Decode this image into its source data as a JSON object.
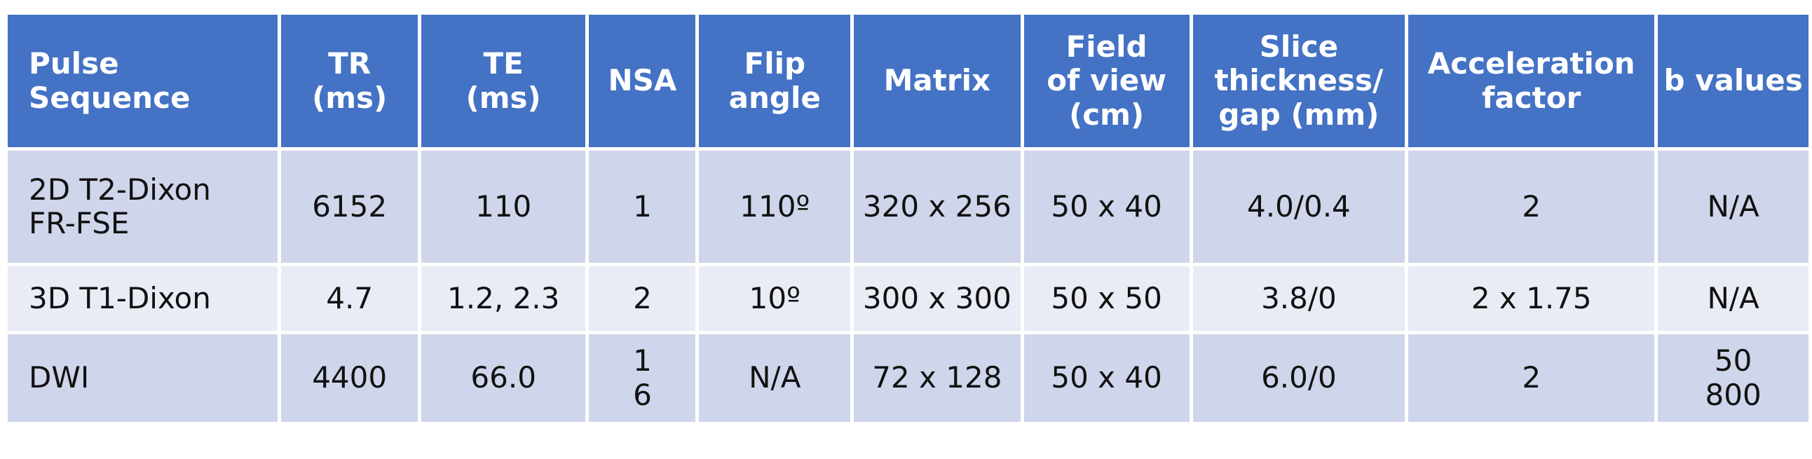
{
  "table": {
    "header": [
      "Pulse\nSequence",
      "TR\n(ms)",
      "TE\n(ms)",
      "NSA",
      "Flip\nangle",
      "Matrix",
      "Field\nof view\n(cm)",
      "Slice\nthickness/\ngap (mm)",
      "Acceleration\nfactor",
      "b values"
    ],
    "rows": [
      [
        "2D T2-Dixon\nFR-FSE",
        "6152",
        "110",
        "1",
        "110º",
        "320 x 256",
        "50 x 40",
        "4.0/0.4",
        "2",
        "N/A"
      ],
      [
        "3D T1-Dixon",
        "4.7",
        "1.2, 2.3",
        "2",
        "10º",
        "300 x 300",
        "50 x 50",
        "3.8/0",
        "2 x 1.75",
        "N/A"
      ],
      [
        "DWI",
        "4400",
        "66.0",
        "1\n6",
        "N/A",
        "72 x 128",
        "50 x 40",
        "6.0/0",
        "2",
        "50\n800"
      ]
    ]
  }
}
